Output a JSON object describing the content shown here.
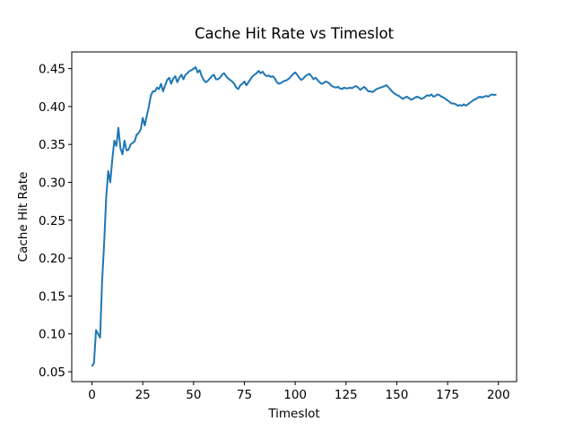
{
  "chart_data": {
    "type": "line",
    "title": "Cache Hit Rate vs Timeslot",
    "x_label": "Timeslot",
    "y_label": "Cache Hit Rate",
    "x": [
      0,
      1,
      2,
      3,
      4,
      5,
      6,
      7,
      8,
      9,
      10,
      11,
      12,
      13,
      14,
      15,
      16,
      17,
      18,
      19,
      20,
      21,
      22,
      23,
      24,
      25,
      26,
      27,
      28,
      29,
      30,
      31,
      32,
      33,
      34,
      35,
      36,
      37,
      38,
      39,
      40,
      41,
      42,
      43,
      44,
      45,
      46,
      47,
      48,
      49,
      50,
      51,
      52,
      53,
      54,
      55,
      56,
      57,
      58,
      59,
      60,
      61,
      62,
      63,
      64,
      65,
      66,
      67,
      68,
      69,
      70,
      71,
      72,
      73,
      74,
      75,
      76,
      77,
      78,
      79,
      80,
      81,
      82,
      83,
      84,
      85,
      86,
      87,
      88,
      89,
      90,
      91,
      92,
      93,
      94,
      95,
      96,
      97,
      98,
      99,
      100,
      101,
      102,
      103,
      104,
      105,
      106,
      107,
      108,
      109,
      110,
      111,
      112,
      113,
      114,
      115,
      116,
      117,
      118,
      119,
      120,
      121,
      122,
      123,
      124,
      125,
      126,
      127,
      128,
      129,
      130,
      131,
      132,
      133,
      134,
      135,
      136,
      137,
      138,
      139,
      140,
      141,
      142,
      143,
      144,
      145,
      146,
      147,
      148,
      149,
      150,
      151,
      152,
      153,
      154,
      155,
      156,
      157,
      158,
      159,
      160,
      161,
      162,
      163,
      164,
      165,
      166,
      167,
      168,
      169,
      170,
      171,
      172,
      173,
      174,
      175,
      176,
      177,
      178,
      179,
      180,
      181,
      182,
      183,
      184,
      185,
      186,
      187,
      188,
      189,
      190,
      191,
      192,
      193,
      194,
      195,
      196,
      197,
      198,
      199
    ],
    "series": [
      {
        "name": "Cache Hit Rate",
        "color": "#1f77b4",
        "values": [
          0.057,
          0.062,
          0.105,
          0.1,
          0.095,
          0.17,
          0.22,
          0.28,
          0.315,
          0.3,
          0.33,
          0.355,
          0.348,
          0.372,
          0.345,
          0.337,
          0.355,
          0.342,
          0.343,
          0.35,
          0.352,
          0.354,
          0.363,
          0.365,
          0.37,
          0.385,
          0.375,
          0.388,
          0.4,
          0.415,
          0.42,
          0.42,
          0.425,
          0.423,
          0.43,
          0.42,
          0.428,
          0.435,
          0.438,
          0.43,
          0.437,
          0.44,
          0.432,
          0.438,
          0.442,
          0.436,
          0.442,
          0.444,
          0.447,
          0.448,
          0.45,
          0.452,
          0.445,
          0.448,
          0.44,
          0.435,
          0.432,
          0.434,
          0.437,
          0.44,
          0.442,
          0.436,
          0.436,
          0.438,
          0.442,
          0.444,
          0.44,
          0.437,
          0.435,
          0.433,
          0.43,
          0.425,
          0.423,
          0.428,
          0.43,
          0.433,
          0.428,
          0.432,
          0.436,
          0.44,
          0.442,
          0.444,
          0.447,
          0.444,
          0.446,
          0.442,
          0.44,
          0.441,
          0.439,
          0.44,
          0.437,
          0.432,
          0.43,
          0.431,
          0.433,
          0.434,
          0.435,
          0.437,
          0.44,
          0.443,
          0.445,
          0.442,
          0.438,
          0.435,
          0.437,
          0.44,
          0.442,
          0.443,
          0.44,
          0.436,
          0.438,
          0.435,
          0.432,
          0.43,
          0.431,
          0.433,
          0.432,
          0.43,
          0.427,
          0.426,
          0.425,
          0.426,
          0.424,
          0.423,
          0.425,
          0.424,
          0.424,
          0.425,
          0.424,
          0.426,
          0.427,
          0.425,
          0.422,
          0.424,
          0.426,
          0.423,
          0.42,
          0.42,
          0.419,
          0.421,
          0.423,
          0.424,
          0.425,
          0.426,
          0.427,
          0.428,
          0.425,
          0.422,
          0.419,
          0.417,
          0.415,
          0.414,
          0.412,
          0.41,
          0.412,
          0.413,
          0.411,
          0.409,
          0.41,
          0.412,
          0.413,
          0.412,
          0.41,
          0.411,
          0.413,
          0.415,
          0.414,
          0.416,
          0.413,
          0.414,
          0.416,
          0.415,
          0.413,
          0.412,
          0.41,
          0.408,
          0.406,
          0.404,
          0.404,
          0.403,
          0.401,
          0.402,
          0.401,
          0.403,
          0.401,
          0.403,
          0.405,
          0.407,
          0.409,
          0.41,
          0.412,
          0.413,
          0.412,
          0.413,
          0.414,
          0.413,
          0.415,
          0.416,
          0.415,
          0.416
        ]
      }
    ],
    "xlim": [
      -9.95,
      208.95
    ],
    "ylim": [
      0.037,
      0.472
    ],
    "xticks": [
      0,
      25,
      50,
      75,
      100,
      125,
      150,
      175,
      200
    ],
    "yticks": [
      0.05,
      {
        "value": 0.1,
        "label": "0.10"
      },
      0.15,
      {
        "value": 0.2,
        "label": "0.20"
      },
      0.25,
      {
        "value": 0.3,
        "label": "0.30"
      },
      0.35,
      {
        "value": 0.4,
        "label": "0.40"
      },
      0.45
    ],
    "grid": false
  }
}
